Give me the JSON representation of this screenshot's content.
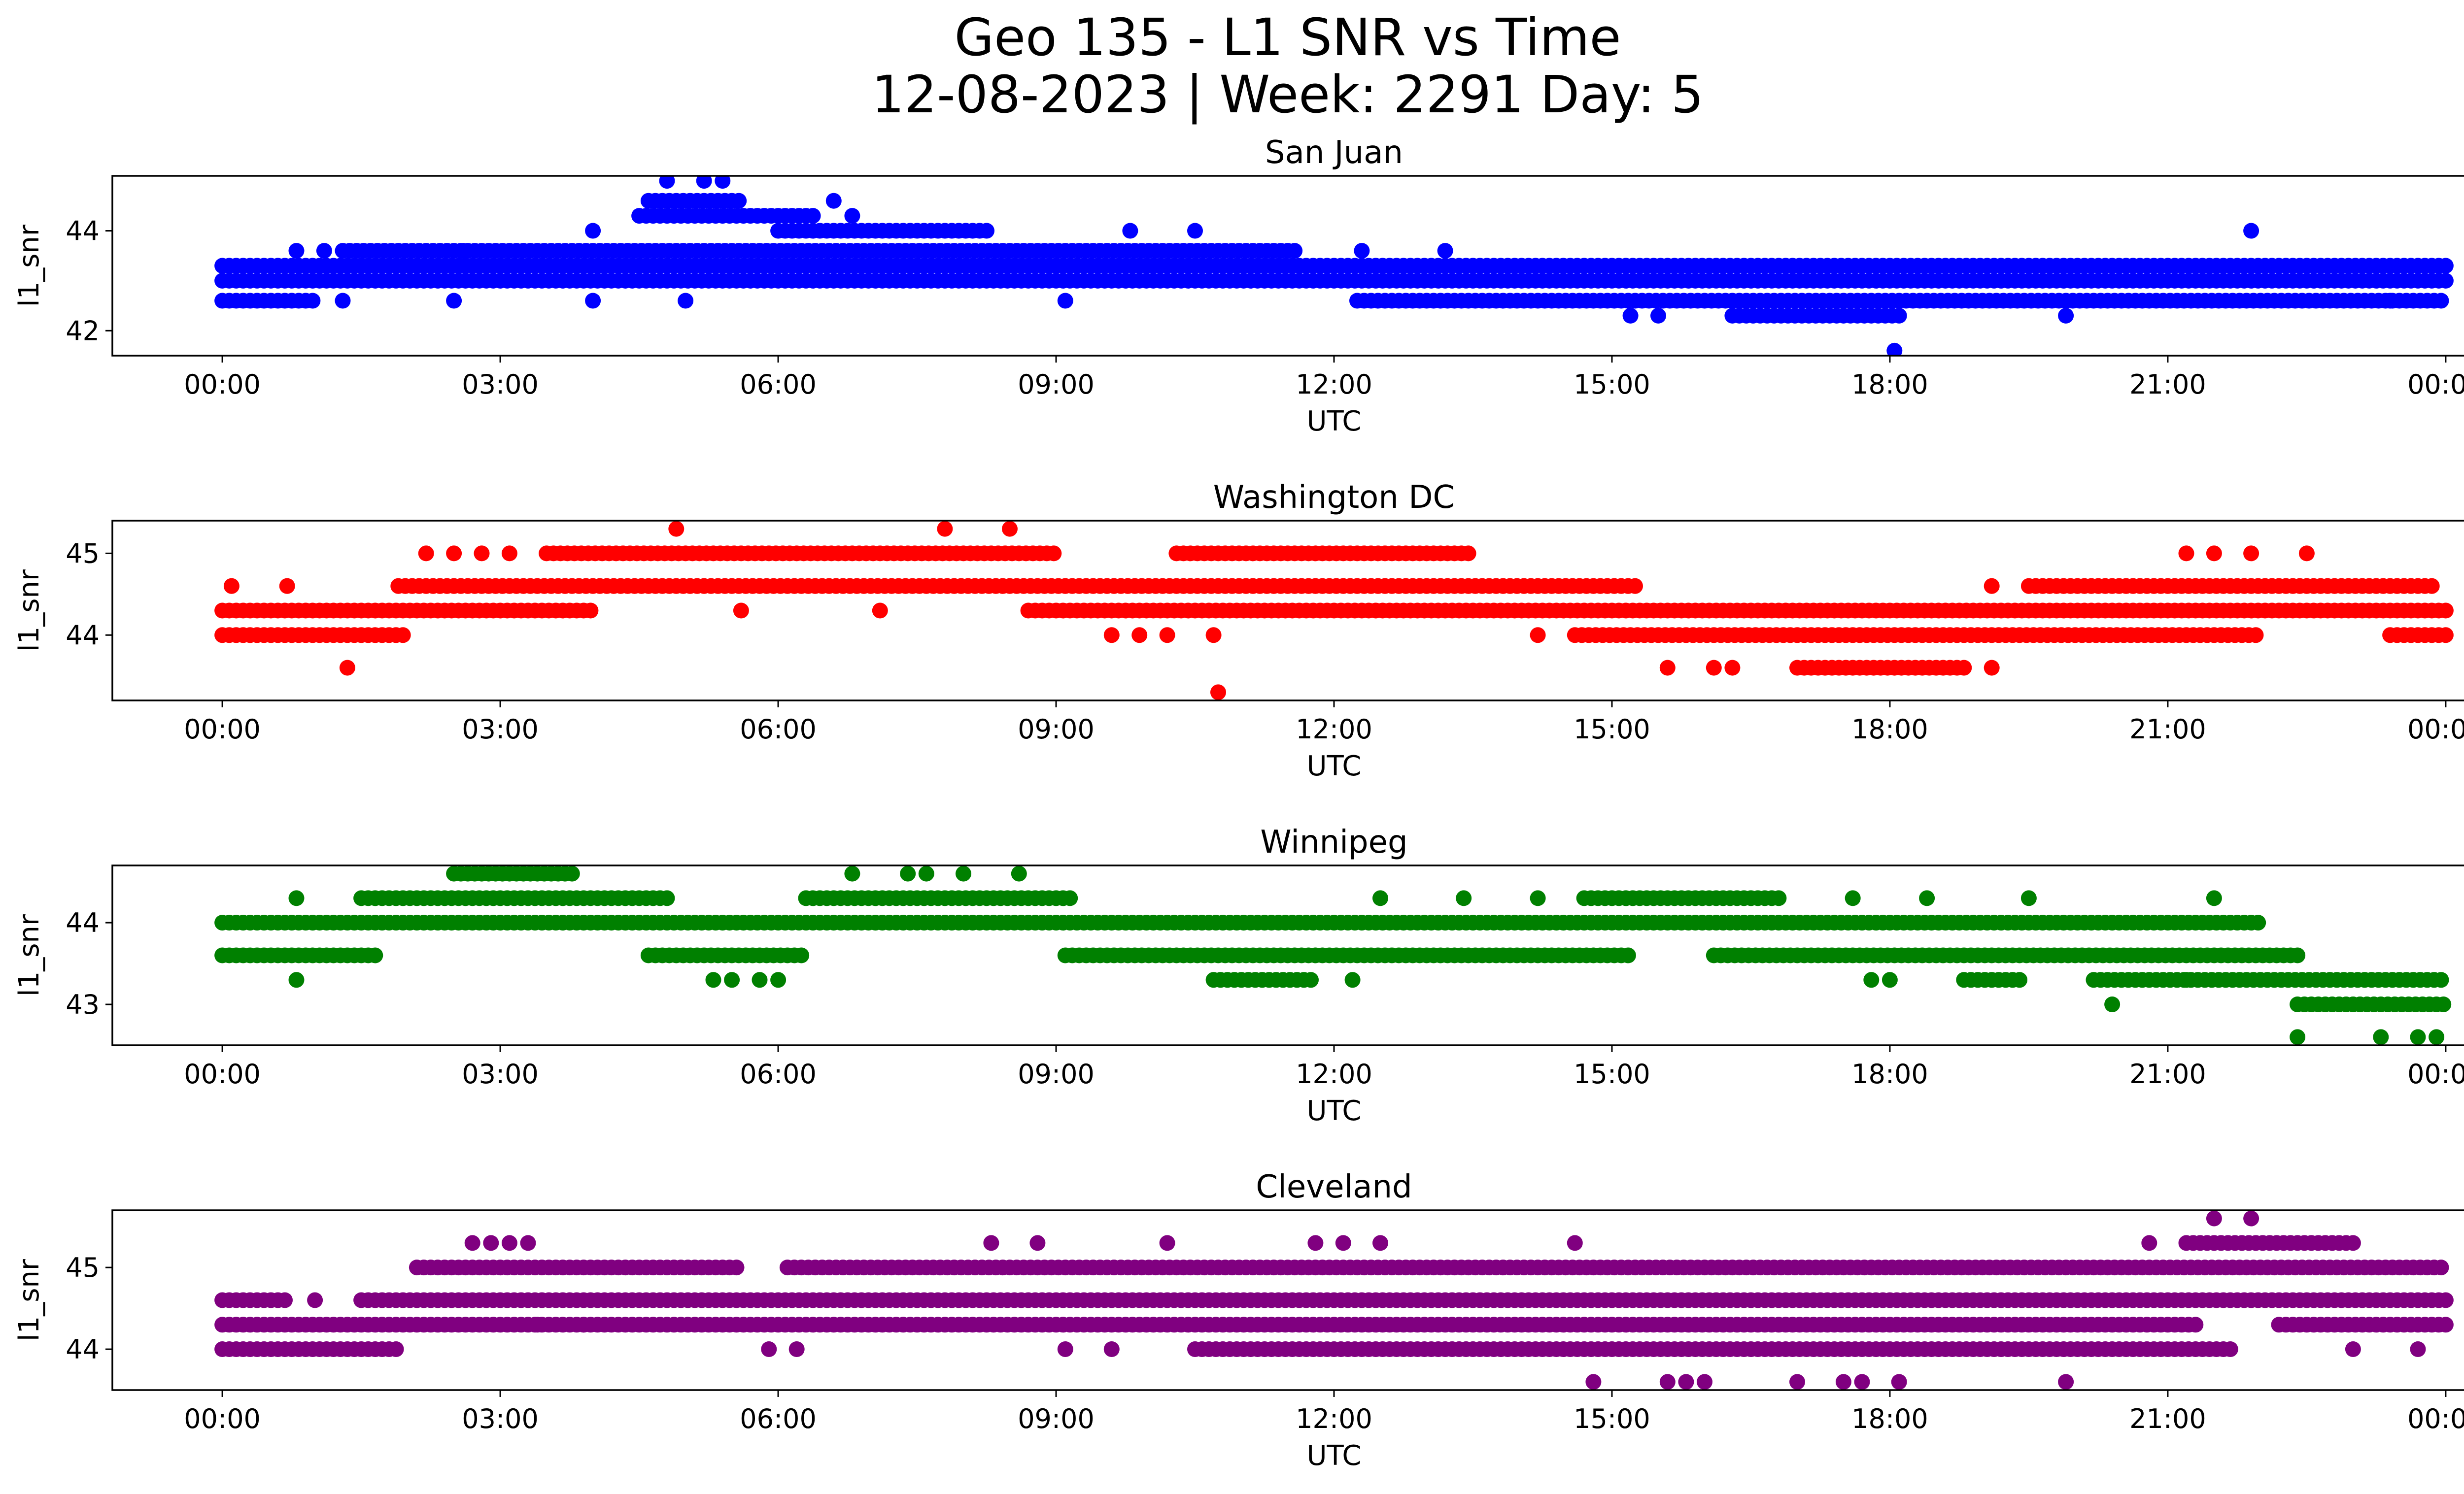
{
  "figure": {
    "title_line1": "Geo 135 - L1 SNR vs Time",
    "title_line2": "12-08-2023 | Week: 2291 Day: 5"
  },
  "chart_data": [
    {
      "type": "scatter",
      "title": "San Juan",
      "xlabel": "UTC",
      "ylabel": "l1_snr",
      "color": "#0000ff",
      "x_unit": "hours UTC",
      "xlim": [
        "00:00",
        "24:00"
      ],
      "ylim": [
        41.5,
        45.1
      ],
      "xticks": [
        "00:00",
        "03:00",
        "06:00",
        "09:00",
        "12:00",
        "15:00",
        "18:00",
        "21:00",
        "00:00"
      ],
      "yticks": [
        42,
        44
      ],
      "bands": [
        {
          "y": 42.6,
          "x": [
            0,
            1.0
          ]
        },
        {
          "y": 42.6,
          "x": [
            12.25,
            24.0
          ]
        },
        {
          "y": 43.0,
          "x": [
            0,
            24.0
          ]
        },
        {
          "y": 43.3,
          "x": [
            0,
            24.0
          ]
        },
        {
          "y": 43.6,
          "x": [
            1.3,
            11.6
          ]
        },
        {
          "y": 44.0,
          "x": [
            6.0,
            8.3
          ]
        },
        {
          "y": 44.3,
          "x": [
            4.5,
            6.4
          ]
        },
        {
          "y": 44.6,
          "x": [
            4.6,
            5.6
          ]
        },
        {
          "y": 42.3,
          "x": [
            16.3,
            18.1
          ]
        }
      ],
      "points": [
        {
          "x": 4.8,
          "y": 45.0
        },
        {
          "x": 5.2,
          "y": 45.0
        },
        {
          "x": 5.4,
          "y": 45.0
        },
        {
          "x": 9.8,
          "y": 44.0
        },
        {
          "x": 10.5,
          "y": 44.0
        },
        {
          "x": 4.0,
          "y": 44.0
        },
        {
          "x": 4.0,
          "y": 42.6
        },
        {
          "x": 5.0,
          "y": 42.6
        },
        {
          "x": 18.05,
          "y": 41.6
        },
        {
          "x": 21.9,
          "y": 44.0
        },
        {
          "x": 19.9,
          "y": 42.3
        },
        {
          "x": 13.2,
          "y": 43.6
        },
        {
          "x": 12.3,
          "y": 43.6
        },
        {
          "x": 15.2,
          "y": 42.3
        },
        {
          "x": 15.5,
          "y": 42.3
        },
        {
          "x": 6.8,
          "y": 44.3
        },
        {
          "x": 6.6,
          "y": 44.6
        },
        {
          "x": 0.8,
          "y": 43.6
        },
        {
          "x": 1.1,
          "y": 43.6
        },
        {
          "x": 2.6,
          "y": 43.6
        },
        {
          "x": 2.5,
          "y": 42.6
        },
        {
          "x": 1.3,
          "y": 42.6
        },
        {
          "x": 9.1,
          "y": 42.6
        },
        {
          "x": 23.4,
          "y": 42.6
        }
      ]
    },
    {
      "type": "scatter",
      "title": "Washington DC",
      "xlabel": "UTC",
      "ylabel": "l1_snr",
      "color": "#ff0000",
      "x_unit": "hours UTC",
      "xlim": [
        "00:00",
        "24:00"
      ],
      "ylim": [
        43.2,
        45.4
      ],
      "xticks": [
        "00:00",
        "03:00",
        "06:00",
        "09:00",
        "12:00",
        "15:00",
        "18:00",
        "21:00",
        "00:00"
      ],
      "yticks": [
        44,
        45
      ],
      "bands": [
        {
          "y": 44.0,
          "x": [
            0,
            2.0
          ]
        },
        {
          "y": 44.0,
          "x": [
            14.6,
            22.0
          ]
        },
        {
          "y": 44.0,
          "x": [
            23.4,
            24.0
          ]
        },
        {
          "y": 44.3,
          "x": [
            0,
            4.0
          ]
        },
        {
          "y": 44.3,
          "x": [
            8.7,
            24.0
          ]
        },
        {
          "y": 44.6,
          "x": [
            1.9,
            15.3
          ]
        },
        {
          "y": 44.6,
          "x": [
            19.5,
            23.9
          ]
        },
        {
          "y": 45.0,
          "x": [
            3.5,
            9.0
          ]
        },
        {
          "y": 45.0,
          "x": [
            10.3,
            13.5
          ]
        },
        {
          "y": 43.6,
          "x": [
            17.0,
            18.8
          ]
        }
      ],
      "points": [
        {
          "x": 4.9,
          "y": 45.3
        },
        {
          "x": 7.8,
          "y": 45.3
        },
        {
          "x": 8.5,
          "y": 45.3
        },
        {
          "x": 10.75,
          "y": 43.3
        },
        {
          "x": 1.35,
          "y": 43.6
        },
        {
          "x": 0.1,
          "y": 44.6
        },
        {
          "x": 0.7,
          "y": 44.6
        },
        {
          "x": 2.2,
          "y": 45.0
        },
        {
          "x": 2.5,
          "y": 45.0
        },
        {
          "x": 2.8,
          "y": 45.0
        },
        {
          "x": 3.1,
          "y": 45.0
        },
        {
          "x": 22.5,
          "y": 45.0
        },
        {
          "x": 21.2,
          "y": 45.0
        },
        {
          "x": 21.5,
          "y": 45.0
        },
        {
          "x": 21.9,
          "y": 45.0
        },
        {
          "x": 15.6,
          "y": 43.6
        },
        {
          "x": 16.1,
          "y": 43.6
        },
        {
          "x": 16.3,
          "y": 43.6
        },
        {
          "x": 19.1,
          "y": 43.6
        },
        {
          "x": 9.6,
          "y": 44.0
        },
        {
          "x": 9.9,
          "y": 44.0
        },
        {
          "x": 10.2,
          "y": 44.0
        },
        {
          "x": 10.7,
          "y": 44.0
        },
        {
          "x": 14.2,
          "y": 44.0
        },
        {
          "x": 19.1,
          "y": 44.6
        },
        {
          "x": 5.6,
          "y": 44.3
        },
        {
          "x": 7.1,
          "y": 44.3
        }
      ]
    },
    {
      "type": "scatter",
      "title": "Winnipeg",
      "xlabel": "UTC",
      "ylabel": "l1_snr",
      "color": "#008000",
      "x_unit": "hours UTC",
      "xlim": [
        "00:00",
        "24:00"
      ],
      "ylim": [
        42.5,
        44.7
      ],
      "xticks": [
        "00:00",
        "03:00",
        "06:00",
        "09:00",
        "12:00",
        "15:00",
        "18:00",
        "21:00",
        "00:00"
      ],
      "yticks": [
        43,
        44
      ],
      "bands": [
        {
          "y": 43.6,
          "x": [
            0,
            1.7
          ]
        },
        {
          "y": 43.6,
          "x": [
            4.6,
            6.3
          ]
        },
        {
          "y": 43.6,
          "x": [
            9.1,
            15.2
          ]
        },
        {
          "y": 43.6,
          "x": [
            16.1,
            22.4
          ]
        },
        {
          "y": 44.0,
          "x": [
            0,
            22.0
          ]
        },
        {
          "y": 44.3,
          "x": [
            1.5,
            4.8
          ]
        },
        {
          "y": 44.3,
          "x": [
            6.3,
            9.2
          ]
        },
        {
          "y": 44.3,
          "x": [
            14.7,
            16.8
          ]
        },
        {
          "y": 44.6,
          "x": [
            2.5,
            3.8
          ]
        },
        {
          "y": 43.3,
          "x": [
            10.7,
            11.8
          ]
        },
        {
          "y": 43.3,
          "x": [
            18.8,
            19.4
          ]
        },
        {
          "y": 43.3,
          "x": [
            20.2,
            24.0
          ]
        },
        {
          "y": 43.0,
          "x": [
            22.4,
            24.0
          ]
        }
      ],
      "points": [
        {
          "x": 0.8,
          "y": 44.3
        },
        {
          "x": 0.8,
          "y": 43.3
        },
        {
          "x": 5.3,
          "y": 43.3
        },
        {
          "x": 5.5,
          "y": 43.3
        },
        {
          "x": 5.8,
          "y": 43.3
        },
        {
          "x": 6.0,
          "y": 43.3
        },
        {
          "x": 6.8,
          "y": 44.6
        },
        {
          "x": 7.4,
          "y": 44.6
        },
        {
          "x": 7.6,
          "y": 44.6
        },
        {
          "x": 8.0,
          "y": 44.6
        },
        {
          "x": 8.6,
          "y": 44.6
        },
        {
          "x": 12.2,
          "y": 43.3
        },
        {
          "x": 12.5,
          "y": 44.3
        },
        {
          "x": 13.4,
          "y": 44.3
        },
        {
          "x": 14.2,
          "y": 44.3
        },
        {
          "x": 17.6,
          "y": 44.3
        },
        {
          "x": 18.4,
          "y": 44.3
        },
        {
          "x": 19.5,
          "y": 44.3
        },
        {
          "x": 21.5,
          "y": 44.3
        },
        {
          "x": 20.4,
          "y": 43.0
        },
        {
          "x": 22.4,
          "y": 42.6
        },
        {
          "x": 23.3,
          "y": 42.6
        },
        {
          "x": 23.7,
          "y": 42.6
        },
        {
          "x": 23.9,
          "y": 42.6
        },
        {
          "x": 18.0,
          "y": 43.3
        },
        {
          "x": 17.8,
          "y": 43.3
        },
        {
          "x": 21.2,
          "y": 43.3
        }
      ]
    },
    {
      "type": "scatter",
      "title": "Cleveland",
      "xlabel": "UTC",
      "ylabel": "l1_snr",
      "color": "#800080",
      "x_unit": "hours UTC",
      "xlim": [
        "00:00",
        "24:00"
      ],
      "ylim": [
        43.5,
        45.7
      ],
      "xticks": [
        "00:00",
        "03:00",
        "06:00",
        "09:00",
        "12:00",
        "15:00",
        "18:00",
        "21:00",
        "00:00"
      ],
      "yticks": [
        44,
        45
      ],
      "bands": [
        {
          "y": 44.0,
          "x": [
            0,
            1.9
          ]
        },
        {
          "y": 44.0,
          "x": [
            10.5,
            21.7
          ]
        },
        {
          "y": 44.3,
          "x": [
            0,
            21.3
          ]
        },
        {
          "y": 44.3,
          "x": [
            22.2,
            24.0
          ]
        },
        {
          "y": 44.6,
          "x": [
            0,
            0.7
          ]
        },
        {
          "y": 44.6,
          "x": [
            1.5,
            24.0
          ]
        },
        {
          "y": 45.0,
          "x": [
            2.1,
            5.6
          ]
        },
        {
          "y": 45.0,
          "x": [
            6.1,
            24.0
          ]
        },
        {
          "y": 45.3,
          "x": [
            21.2,
            23.0
          ]
        }
      ],
      "points": [
        {
          "x": 2.7,
          "y": 45.3
        },
        {
          "x": 2.9,
          "y": 45.3
        },
        {
          "x": 3.1,
          "y": 45.3
        },
        {
          "x": 3.3,
          "y": 45.3
        },
        {
          "x": 8.3,
          "y": 45.3
        },
        {
          "x": 8.8,
          "y": 45.3
        },
        {
          "x": 10.2,
          "y": 45.3
        },
        {
          "x": 11.8,
          "y": 45.3
        },
        {
          "x": 12.1,
          "y": 45.3
        },
        {
          "x": 12.5,
          "y": 45.3
        },
        {
          "x": 14.6,
          "y": 45.3
        },
        {
          "x": 20.8,
          "y": 45.3
        },
        {
          "x": 21.5,
          "y": 45.6
        },
        {
          "x": 21.9,
          "y": 45.6
        },
        {
          "x": 14.8,
          "y": 43.6
        },
        {
          "x": 15.6,
          "y": 43.6
        },
        {
          "x": 15.8,
          "y": 43.6
        },
        {
          "x": 16.0,
          "y": 43.6
        },
        {
          "x": 17.0,
          "y": 43.6
        },
        {
          "x": 17.5,
          "y": 43.6
        },
        {
          "x": 17.7,
          "y": 43.6
        },
        {
          "x": 18.1,
          "y": 43.6
        },
        {
          "x": 19.9,
          "y": 43.6
        },
        {
          "x": 5.9,
          "y": 44.0
        },
        {
          "x": 6.2,
          "y": 44.0
        },
        {
          "x": 9.1,
          "y": 44.0
        },
        {
          "x": 9.6,
          "y": 44.0
        },
        {
          "x": 23.0,
          "y": 44.0
        },
        {
          "x": 23.7,
          "y": 44.0
        },
        {
          "x": 3.4,
          "y": 44.3
        },
        {
          "x": 3.9,
          "y": 44.3
        },
        {
          "x": 1.0,
          "y": 44.6
        }
      ]
    }
  ]
}
